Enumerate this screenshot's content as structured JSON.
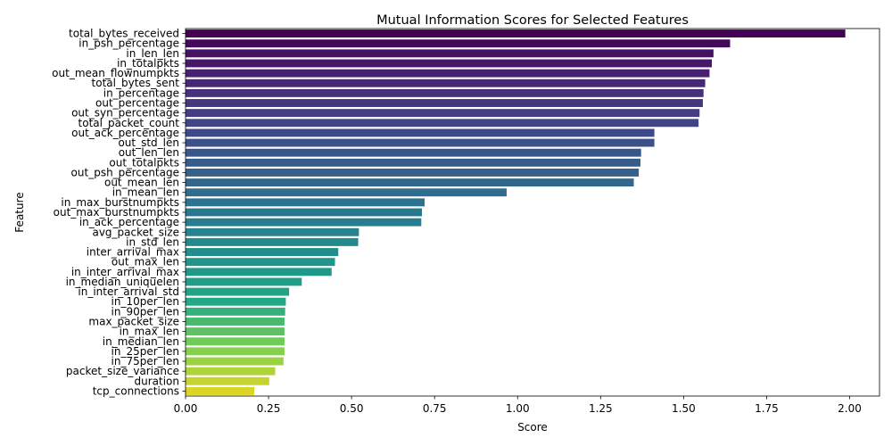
{
  "chart_data": {
    "type": "bar",
    "orientation": "horizontal",
    "title": "Mutual Information Scores for Selected Features",
    "xlabel": "Score",
    "ylabel": "Feature",
    "xlim": [
      0,
      2.09
    ],
    "xticks": [
      0.0,
      0.25,
      0.5,
      0.75,
      1.0,
      1.25,
      1.5,
      1.75,
      2.0
    ],
    "xtick_labels": [
      "0.00",
      "0.25",
      "0.50",
      "0.75",
      "1.00",
      "1.25",
      "1.50",
      "1.75",
      "2.00"
    ],
    "palette": "viridis",
    "grid": false,
    "categories": [
      "total_bytes_received",
      "in_psh_percentage",
      "in_len_len",
      "in_totalpkts",
      "out_mean_flownumpkts",
      "total_bytes_sent",
      "in_percentage",
      "out_percentage",
      "out_syn_percentage",
      "total_packet_count",
      "out_ack_percentage",
      "out_std_len",
      "out_len_len",
      "out_totalpkts",
      "out_psh_percentage",
      "out_mean_len",
      "in_mean_len",
      "in_max_burstnumpkts",
      "out_max_burstnumpkts",
      "in_ack_percentage",
      "avg_packet_size",
      "in_std_len",
      "inter_arrival_max",
      "out_max_len",
      "in_inter_arrival_max",
      "in_median_uniquelen",
      "in_inter_arrival_std",
      "in_10per_len",
      "in_90per_len",
      "max_packet_size",
      "in_max_len",
      "in_median_len",
      "in_25per_len",
      "in_75per_len",
      "packet_size_variance",
      "duration",
      "tcp_connections"
    ],
    "values": [
      1.987,
      1.64,
      1.59,
      1.585,
      1.578,
      1.565,
      1.56,
      1.558,
      1.548,
      1.545,
      1.412,
      1.412,
      1.372,
      1.37,
      1.365,
      1.35,
      0.967,
      0.72,
      0.712,
      0.71,
      0.522,
      0.52,
      0.46,
      0.45,
      0.44,
      0.35,
      0.312,
      0.302,
      0.3,
      0.298,
      0.298,
      0.298,
      0.298,
      0.295,
      0.27,
      0.252,
      0.207
    ]
  }
}
